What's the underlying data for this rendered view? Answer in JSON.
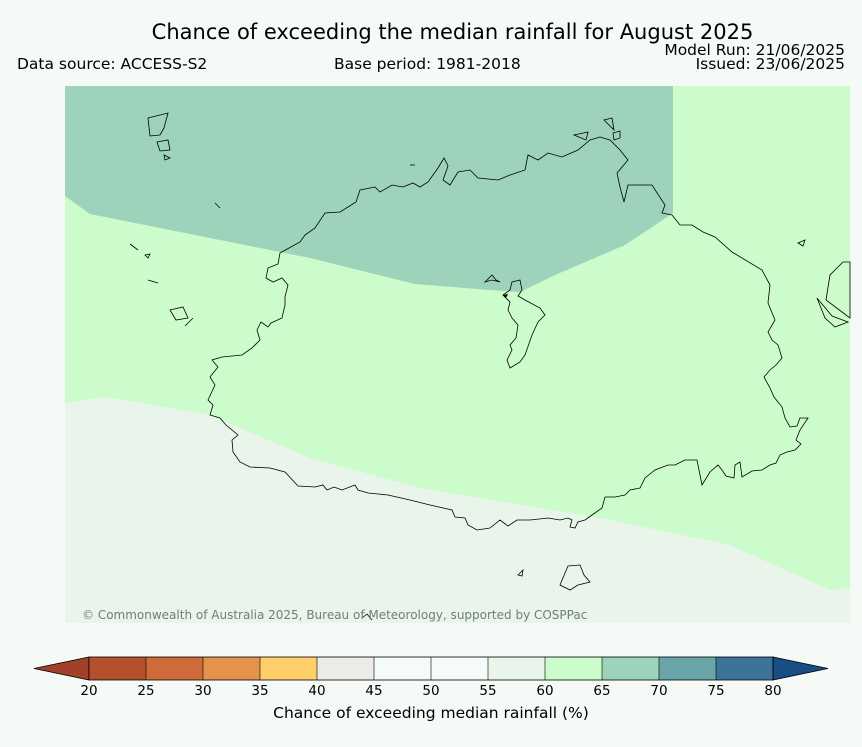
{
  "header": {
    "title": "Chance of exceeding the median rainfall for August 2025",
    "data_source": "Data source: ACCESS-S2",
    "base_period": "Base period: 1981-2018",
    "model_run": "Model Run: 21/06/2025",
    "issued": "Issued: 23/06/2025"
  },
  "map": {
    "copyright": "© Commonwealth of Australia 2025, Bureau of Meteorology, supported by COSPPac",
    "zones": [
      {
        "name": "65-70",
        "color": "#9dd2bb"
      },
      {
        "name": "60-65",
        "color": "#ccfccc"
      },
      {
        "name": "55-60",
        "color": "#e9f5ea"
      }
    ],
    "coastline_color": "#000000"
  },
  "colorbar": {
    "label": "Chance of exceeding median rainfall (%)",
    "ticks": [
      "20",
      "25",
      "30",
      "35",
      "40",
      "45",
      "50",
      "55",
      "60",
      "65",
      "70",
      "75",
      "80"
    ],
    "colors": [
      "#a3402a",
      "#b5502f",
      "#cf6a3a",
      "#e3944a",
      "#fecf69",
      "#ebebe7",
      "#f5fbf8",
      "#f5fbf8",
      "#e9f5ea",
      "#ccfccc",
      "#9dd2bb",
      "#6aa5a9",
      "#3c7497",
      "#174e84"
    ]
  }
}
